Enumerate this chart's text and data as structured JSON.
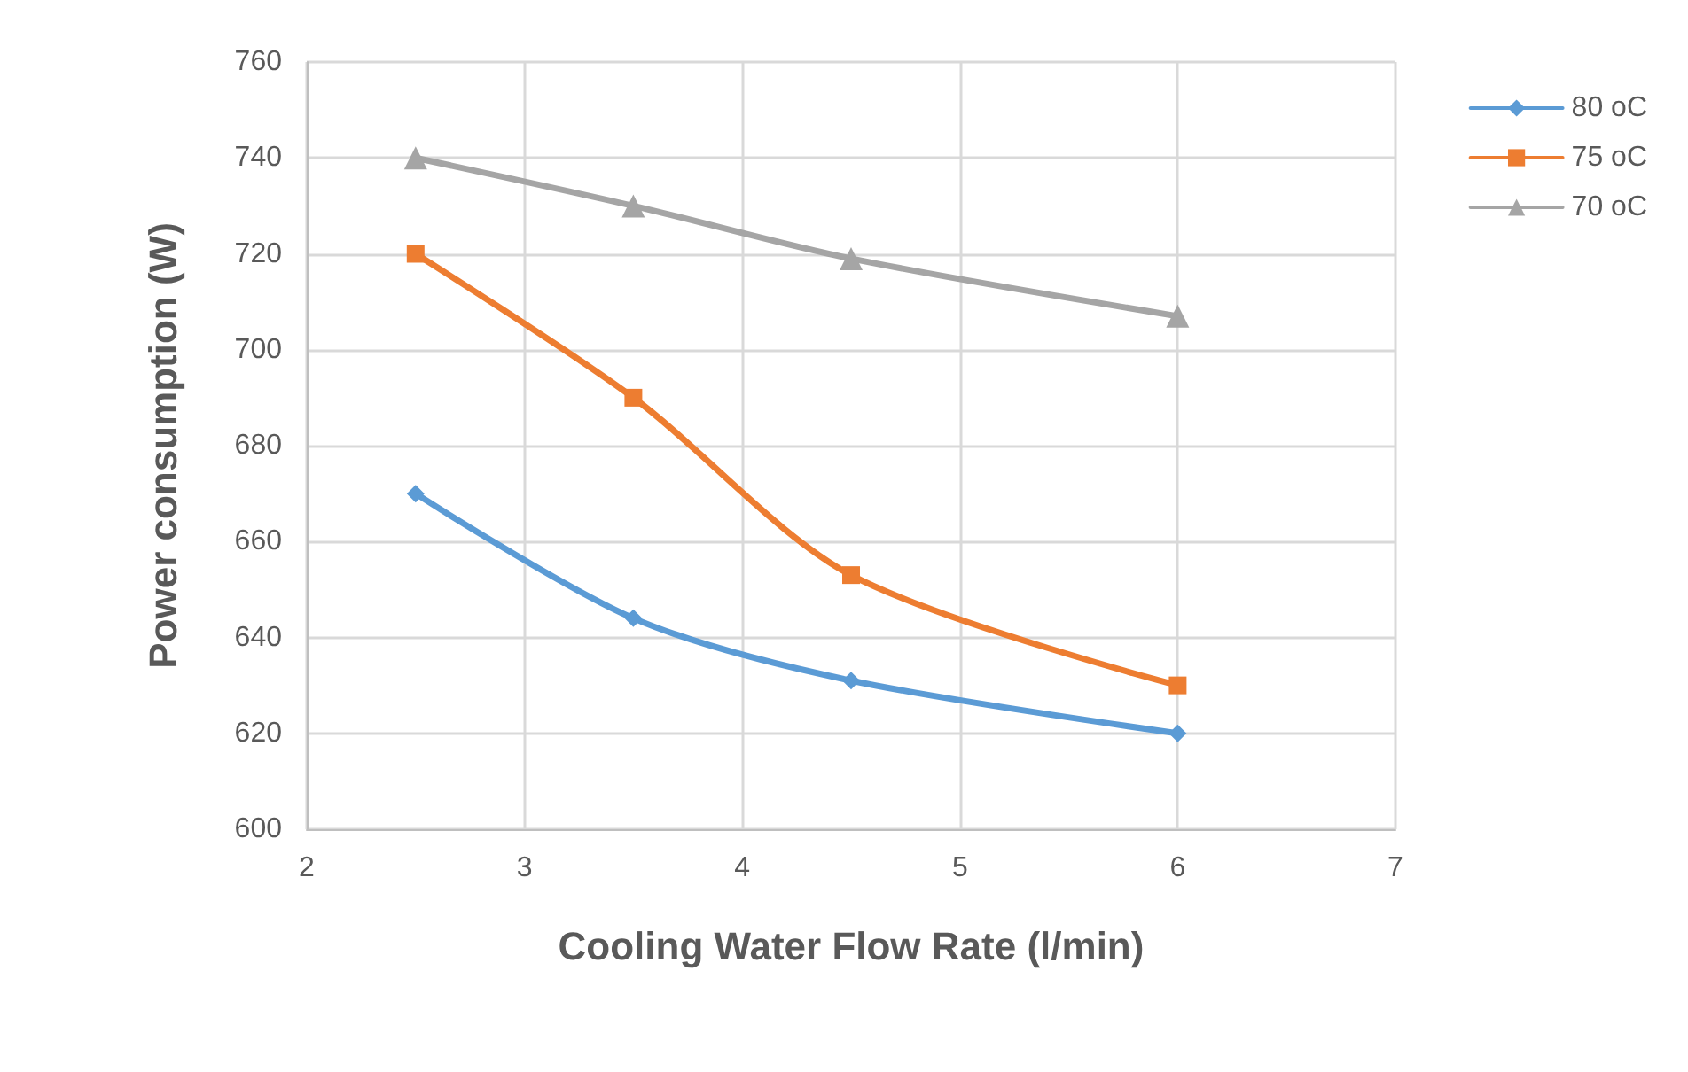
{
  "chart_data": {
    "type": "line",
    "xlabel": "Cooling Water Flow Rate (l/min)",
    "ylabel": "Power consumption (W)",
    "x": [
      2.5,
      3.5,
      4.5,
      6
    ],
    "series": [
      {
        "name": "80 oC",
        "color": "#5b9bd5",
        "marker": "diamond",
        "values": [
          670,
          644,
          631,
          620
        ]
      },
      {
        "name": "75 oC",
        "color": "#ed7d31",
        "marker": "square",
        "values": [
          720,
          690,
          653,
          630
        ]
      },
      {
        "name": "70 oC",
        "color": "#a5a5a5",
        "marker": "triangle",
        "values": [
          740,
          730,
          719,
          707
        ]
      }
    ],
    "xlim": [
      2,
      7
    ],
    "xticks": [
      2,
      3,
      4,
      5,
      6,
      7
    ],
    "ylim": [
      600,
      760
    ],
    "yticks": [
      600,
      620,
      640,
      660,
      680,
      700,
      720,
      740,
      760
    ],
    "grid": true,
    "legend": "top right",
    "line_style": "solid"
  }
}
